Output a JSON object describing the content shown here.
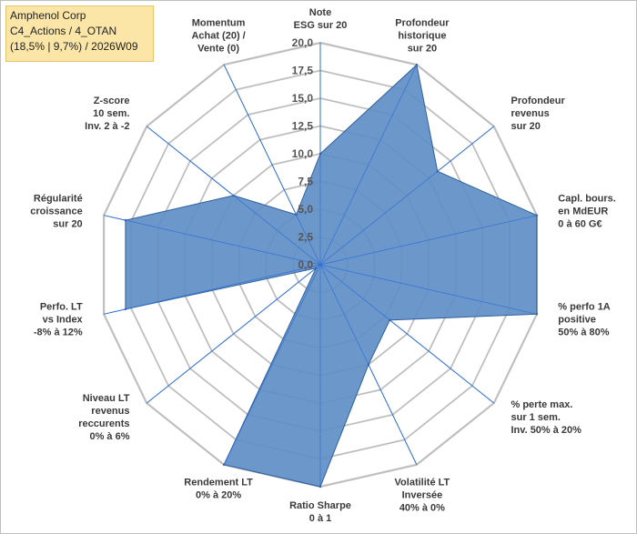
{
  "title": {
    "line1": "Amphenol Corp",
    "line2": "C4_Actions / 4_OTAN",
    "line3": "(18,5% | 9,7%) / 2026W09"
  },
  "colors": {
    "fill": "#5f8ec5",
    "stroke": "#2f5f9e",
    "grid": "#bfbfbf",
    "spoke": "#2f6fd6"
  },
  "chart_data": {
    "type": "radar",
    "rmin": 0,
    "rmax": 20,
    "ticks": [
      "0,0",
      "2,5",
      "5,0",
      "7,5",
      "10,0",
      "12,5",
      "15,0",
      "17,5",
      "20,0"
    ],
    "grid": true,
    "axes": [
      {
        "lines": [
          "Note",
          "ESG sur 20"
        ],
        "value": 10.0
      },
      {
        "lines": [
          "Profondeur",
          "historique",
          "sur 20"
        ],
        "value": 20.0
      },
      {
        "lines": [
          "Profondeur",
          "revenus",
          "sur 20"
        ],
        "value": 13.5
      },
      {
        "lines": [
          "Capl. bours.",
          "en MdEUR",
          "0 à 60 G€"
        ],
        "value": 20.0
      },
      {
        "lines": [
          "% perfo 1A",
          "positive",
          "50% à 80%"
        ],
        "value": 20.0
      },
      {
        "lines": [
          "% perte max.",
          "sur 1 sem.",
          "Inv. 50% à 20%"
        ],
        "value": 8.0
      },
      {
        "lines": [
          "Volatilité LT",
          "Inversée",
          "40% à 0%"
        ],
        "value": 10.0
      },
      {
        "lines": [
          "Ratio Sharpe",
          "0 à 1"
        ],
        "value": 20.0
      },
      {
        "lines": [
          "Rendement LT",
          "0% à 20%"
        ],
        "value": 20.0
      },
      {
        "lines": [
          "Niveau LT",
          "revenus",
          "reccurents",
          "0% à 6%"
        ],
        "value": 0.5
      },
      {
        "lines": [
          "Perfo. LT",
          "vs Index",
          "-8% à 12%"
        ],
        "value": 18.0
      },
      {
        "lines": [
          "Régularité",
          "croissance",
          "sur 20"
        ],
        "value": 18.0
      },
      {
        "lines": [
          "Z-score",
          "10 sem.",
          "Inv. 2 à -2"
        ],
        "value": 10.0
      },
      {
        "lines": [
          "Momentum",
          "Achat (20) /",
          "Vente (0)"
        ],
        "value": 5.0
      }
    ]
  }
}
